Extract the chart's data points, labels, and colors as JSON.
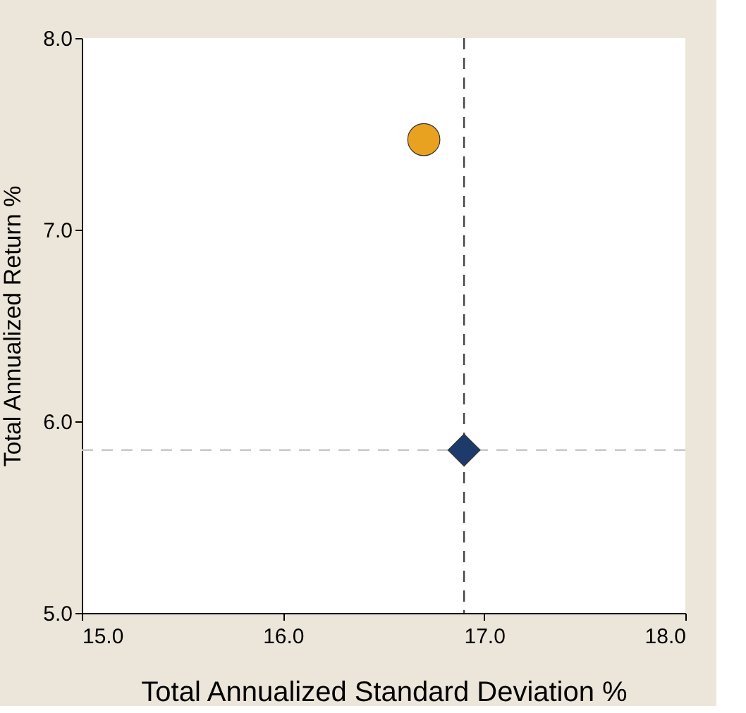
{
  "chart_data": {
    "type": "scatter",
    "xlabel": "Total Annualized Standard Deviation %",
    "ylabel": "Total Annualized Return %",
    "xlim": [
      15,
      18
    ],
    "ylim": [
      5,
      8
    ],
    "xticks": [
      {
        "value": 15,
        "label": "15.0"
      },
      {
        "value": 16,
        "label": "16.0"
      },
      {
        "value": 17,
        "label": "17.0"
      },
      {
        "value": 18,
        "label": "18.0"
      }
    ],
    "yticks": [
      {
        "value": 5,
        "label": "5.0"
      },
      {
        "value": 6,
        "label": "6.0"
      },
      {
        "value": 7,
        "label": "7.0"
      },
      {
        "value": 8,
        "label": "8.0"
      }
    ],
    "series": [
      {
        "color": "#e9a21f",
        "marker": "circle",
        "x": [
          16.7
        ],
        "values": [
          7.47
        ]
      },
      {
        "color": "#1d3a6b",
        "marker": "diamond",
        "x": [
          16.9
        ],
        "values": [
          5.85
        ]
      }
    ],
    "ref_lines": [
      {
        "axis": "x",
        "value": 16.9,
        "color": "#444444",
        "line_style": "dashed"
      },
      {
        "axis": "y",
        "value": 5.85,
        "color": "#c8c8c8",
        "line_style": "dashed"
      }
    ],
    "grid": false
  }
}
